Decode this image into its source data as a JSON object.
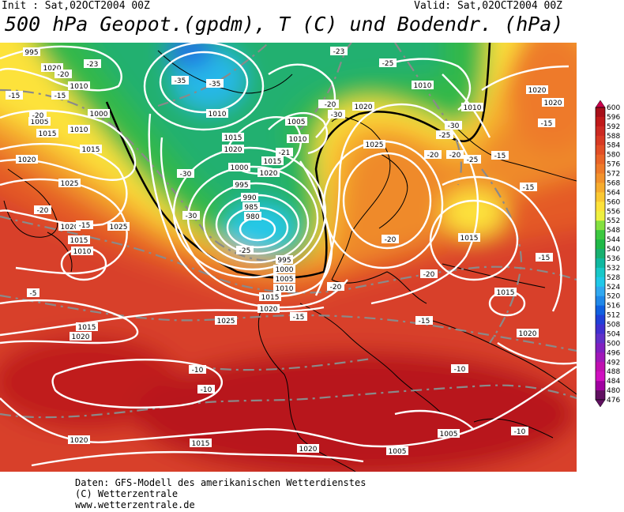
{
  "header": {
    "init_text": "Init : Sat,02OCT2004 00Z",
    "valid_text": "Valid: Sat,02OCT2004 00Z",
    "title": "500 hPa Geopot.(gpdm), T (C) und Bodendr. (hPa)"
  },
  "footer": {
    "line1": "Daten: GFS-Modell des amerikanischen Wetterdienstes",
    "line2": "(C) Wetterzentrale",
    "line3": "www.wetterzentrale.de"
  },
  "legend": {
    "levels": [
      "600",
      "596",
      "592",
      "588",
      "584",
      "580",
      "576",
      "572",
      "568",
      "564",
      "560",
      "556",
      "552",
      "548",
      "544",
      "540",
      "536",
      "532",
      "528",
      "524",
      "520",
      "516",
      "512",
      "508",
      "504",
      "500",
      "496",
      "492",
      "488",
      "484",
      "480",
      "476"
    ],
    "colors": [
      "#c8004a",
      "#a8101a",
      "#c01a1a",
      "#cc2a22",
      "#d83a24",
      "#e24e26",
      "#e96428",
      "#ee7a2a",
      "#f2922c",
      "#f6ac2e",
      "#fac832",
      "#fde23a",
      "#eef040",
      "#84e040",
      "#3cc840",
      "#20b848",
      "#18b070",
      "#10b8a0",
      "#18c8c8",
      "#20c8e8",
      "#30a8f0",
      "#2088e8",
      "#1060e0",
      "#2040d8",
      "#4030d0",
      "#6030c8",
      "#8020c0",
      "#a018b8",
      "#c010b0",
      "#d010c0",
      "#a000a0",
      "#601060"
    ]
  },
  "map": {
    "land_color": "#000000",
    "pressure_isobar_color": "#ffffff",
    "temperature_isotherm_color": "#8a8a8a",
    "isobar_labels": [
      "995",
      "1020",
      "1010",
      "1015",
      "1005",
      "1000",
      "990",
      "985",
      "980",
      "1025"
    ],
    "isotherm_labels": [
      "-25",
      "-20",
      "-15",
      "-35",
      "-30",
      "-10",
      "-5"
    ],
    "pressure_labels": [
      {
        "text": "995"
      },
      {
        "text": "1020"
      },
      {
        "text": "1010"
      },
      {
        "text": "1000"
      },
      {
        "text": "1015"
      },
      {
        "text": "1005"
      },
      {
        "text": "1010"
      },
      {
        "text": "1015"
      },
      {
        "text": "1020"
      },
      {
        "text": "1025"
      },
      {
        "text": "1020"
      },
      {
        "text": "1015"
      },
      {
        "text": "1010"
      },
      {
        "text": "1015"
      },
      {
        "text": "1020"
      },
      {
        "text": "1010"
      },
      {
        "text": "1015"
      },
      {
        "text": "1020"
      },
      {
        "text": "1005"
      },
      {
        "text": "1010"
      },
      {
        "text": "1015"
      },
      {
        "text": "1020"
      },
      {
        "text": "1000"
      },
      {
        "text": "995"
      },
      {
        "text": "990"
      },
      {
        "text": "985"
      },
      {
        "text": "980"
      },
      {
        "text": "995"
      },
      {
        "text": "1000"
      },
      {
        "text": "1005"
      },
      {
        "text": "1010"
      },
      {
        "text": "1015"
      },
      {
        "text": "1020"
      },
      {
        "text": "1025"
      },
      {
        "text": "1025"
      },
      {
        "text": "1010"
      },
      {
        "text": "1015"
      },
      {
        "text": "1020"
      },
      {
        "text": "1020"
      },
      {
        "text": "1015"
      },
      {
        "text": "1020"
      },
      {
        "text": "1025"
      },
      {
        "text": "1020"
      },
      {
        "text": "1020"
      },
      {
        "text": "1015"
      },
      {
        "text": "1020"
      },
      {
        "text": "1005"
      },
      {
        "text": "1005"
      },
      {
        "text": "1010"
      }
    ],
    "temperature_labels": [
      {
        "text": "-23"
      },
      {
        "text": "-20"
      },
      {
        "text": "-15"
      },
      {
        "text": "-15"
      },
      {
        "text": "-35"
      },
      {
        "text": "-35"
      },
      {
        "text": "-23"
      },
      {
        "text": "-25"
      },
      {
        "text": "-20"
      },
      {
        "text": "-20"
      },
      {
        "text": "-21"
      },
      {
        "text": "-25"
      },
      {
        "text": "-30"
      },
      {
        "text": "-20"
      },
      {
        "text": "-20"
      },
      {
        "text": "-25"
      },
      {
        "text": "-15"
      },
      {
        "text": "-20"
      },
      {
        "text": "-15"
      },
      {
        "text": "-30"
      },
      {
        "text": "-20"
      },
      {
        "text": "-15"
      },
      {
        "text": "-15"
      },
      {
        "text": "-5"
      },
      {
        "text": "-10"
      },
      {
        "text": "-10"
      },
      {
        "text": "-15"
      },
      {
        "text": "-20"
      },
      {
        "text": "-20"
      },
      {
        "text": "-15"
      },
      {
        "text": "-15"
      },
      {
        "text": "-10"
      },
      {
        "text": "-10"
      },
      {
        "text": "-30"
      },
      {
        "text": "-25"
      },
      {
        "text": "-20"
      },
      {
        "text": "-30"
      }
    ]
  }
}
